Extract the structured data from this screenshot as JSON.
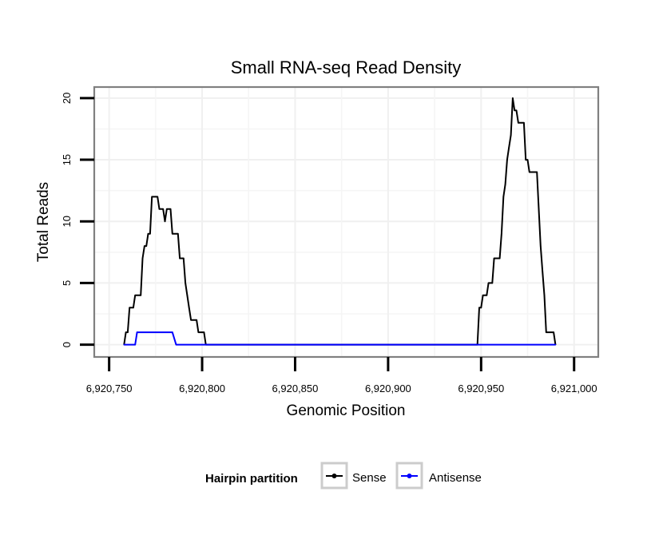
{
  "chart_data": {
    "type": "line",
    "title": "Small RNA-seq Read Density",
    "xlabel": "Genomic Position",
    "ylabel": "Total Reads",
    "xlim": [
      6920742,
      6921013
    ],
    "ylim": [
      -1,
      20.9
    ],
    "x_ticks": [
      6920750,
      6920800,
      6920850,
      6920900,
      6920950,
      6921000
    ],
    "x_tick_labels": [
      "6,920,750",
      "6,920,800",
      "6,920,850",
      "6,920,900",
      "6,920,950",
      "6,921,000"
    ],
    "y_ticks": [
      0,
      5,
      10,
      15,
      20
    ],
    "y_tick_labels": [
      "0",
      "5",
      "10",
      "15",
      "20"
    ],
    "grid": true,
    "legend": {
      "title": "Hairpin partition",
      "position": "bottom",
      "entries": [
        "Sense",
        "Antisense"
      ]
    },
    "series": [
      {
        "name": "Sense",
        "color": "#000000",
        "points": [
          [
            6920758,
            0
          ],
          [
            6920759,
            1
          ],
          [
            6920760,
            1
          ],
          [
            6920761,
            3
          ],
          [
            6920763,
            3
          ],
          [
            6920764,
            4
          ],
          [
            6920767,
            4
          ],
          [
            6920768,
            7
          ],
          [
            6920769,
            8
          ],
          [
            6920770,
            8
          ],
          [
            6920771,
            9
          ],
          [
            6920772,
            9
          ],
          [
            6920773,
            12
          ],
          [
            6920776,
            12
          ],
          [
            6920777,
            11
          ],
          [
            6920779,
            11
          ],
          [
            6920780,
            10
          ],
          [
            6920781,
            11
          ],
          [
            6920783,
            11
          ],
          [
            6920784,
            9
          ],
          [
            6920787,
            9
          ],
          [
            6920788,
            7
          ],
          [
            6920790,
            7
          ],
          [
            6920791,
            5
          ],
          [
            6920792,
            4
          ],
          [
            6920793,
            3
          ],
          [
            6920794,
            2
          ],
          [
            6920797,
            2
          ],
          [
            6920798,
            1
          ],
          [
            6920800,
            1
          ],
          [
            6920801,
            1
          ],
          [
            6920802,
            0
          ],
          [
            6920948,
            0
          ],
          [
            6920949,
            3
          ],
          [
            6920950,
            3
          ],
          [
            6920951,
            4
          ],
          [
            6920953,
            4
          ],
          [
            6920954,
            5
          ],
          [
            6920955,
            5
          ],
          [
            6920956,
            5
          ],
          [
            6920957,
            7
          ],
          [
            6920960,
            7
          ],
          [
            6920961,
            9
          ],
          [
            6920962,
            12
          ],
          [
            6920963,
            13
          ],
          [
            6920964,
            15
          ],
          [
            6920965,
            16
          ],
          [
            6920966,
            17
          ],
          [
            6920967,
            20
          ],
          [
            6920968,
            19
          ],
          [
            6920969,
            19
          ],
          [
            6920970,
            18
          ],
          [
            6920973,
            18
          ],
          [
            6920974,
            15
          ],
          [
            6920975,
            15
          ],
          [
            6920976,
            14
          ],
          [
            6920980,
            14
          ],
          [
            6920981,
            11
          ],
          [
            6920982,
            8
          ],
          [
            6920983,
            6
          ],
          [
            6920984,
            4
          ],
          [
            6920985,
            1
          ],
          [
            6920989,
            1
          ],
          [
            6920990,
            0
          ]
        ]
      },
      {
        "name": "Antisense",
        "color": "#0000ff",
        "points": [
          [
            6920758,
            0
          ],
          [
            6920764,
            0
          ],
          [
            6920765,
            1
          ],
          [
            6920784,
            1
          ],
          [
            6920786,
            0
          ],
          [
            6920990,
            0
          ]
        ]
      }
    ]
  }
}
